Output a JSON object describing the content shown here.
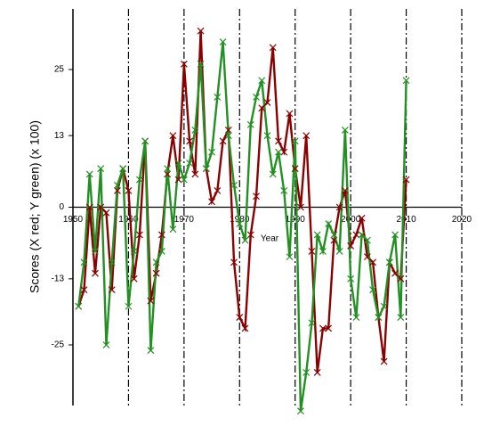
{
  "chart_data": {
    "type": "line",
    "y_label": "Scores (X red; Y green) (x 100)",
    "x_label": "Year",
    "x": [
      1951,
      1952,
      1953,
      1954,
      1955,
      1956,
      1957,
      1958,
      1959,
      1960,
      1961,
      1962,
      1963,
      1964,
      1965,
      1966,
      1967,
      1968,
      1969,
      1970,
      1971,
      1972,
      1973,
      1974,
      1975,
      1976,
      1977,
      1978,
      1979,
      1980,
      1981,
      1982,
      1983,
      1984,
      1985,
      1986,
      1987,
      1988,
      1989,
      1990,
      1991,
      1992,
      1993,
      1994,
      1995,
      1996,
      1997,
      1998,
      1999,
      2000,
      2001,
      2002,
      2003,
      2004,
      2005,
      2006,
      2007,
      2008,
      2009,
      2010
    ],
    "series": [
      {
        "name": "X",
        "color": "#8b0000",
        "values": [
          -18,
          -15,
          0,
          -12,
          0,
          -1,
          -15,
          3,
          7,
          3,
          -13,
          -5,
          12,
          -17,
          -12,
          -5,
          6,
          13,
          5,
          26,
          12,
          6,
          32,
          7,
          1,
          3,
          12,
          14,
          -10,
          -20,
          -22,
          -5,
          2,
          18,
          19,
          29,
          12,
          10,
          17,
          7,
          0,
          13,
          -8,
          -30,
          -22,
          -22,
          -6,
          0,
          3,
          -7,
          -5,
          -2,
          -9,
          -10,
          -20,
          -28,
          -10,
          -12,
          -13,
          5
        ]
      },
      {
        "name": "Y",
        "color": "#239023",
        "values": [
          -18,
          -10,
          6,
          -8,
          7,
          -25,
          -10,
          4,
          7,
          -18,
          -8,
          5,
          12,
          -26,
          -10,
          -8,
          7,
          -4,
          8,
          5,
          8,
          14,
          26,
          7,
          10,
          20,
          30,
          13,
          4,
          -3,
          -6,
          15,
          20,
          23,
          13,
          6,
          10,
          3,
          -9,
          12,
          -37,
          -30,
          -21,
          -5,
          -8,
          -3,
          -5,
          -8,
          14,
          -13,
          -20,
          -5,
          -6,
          -15,
          -20,
          -18,
          -10,
          -5,
          -20,
          23
        ]
      }
    ],
    "xlim": [
      1950,
      2020
    ],
    "xticks": [
      1950,
      1960,
      1970,
      1980,
      1990,
      2000,
      2010,
      2020
    ],
    "ylim": [
      -36,
      36
    ],
    "yticks": [
      -25,
      -13,
      0,
      13,
      25
    ],
    "grid": true
  }
}
